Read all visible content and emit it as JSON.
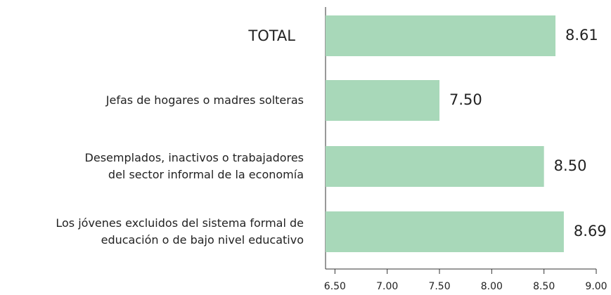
{
  "chart_data": {
    "type": "bar",
    "orientation": "horizontal",
    "categories": [
      "TOTAL",
      "Jefas de hogares o madres solteras",
      "Desemplados, inactivos o trabajadores\ndel sector informal de la economía",
      "Los jóvenes excluidos del sistema formal de\neducación o de bajo nivel educativo"
    ],
    "values": [
      8.61,
      7.5,
      8.5,
      8.69
    ],
    "value_labels": [
      "8.61",
      "7.50",
      "8.50",
      "8.69"
    ],
    "color": "#a8d8b9",
    "xlim": [
      6.41,
      9.0
    ],
    "xticks": [
      {
        "value": 6.5,
        "label": "6.50"
      },
      {
        "value": 7.0,
        "label": "7.00"
      },
      {
        "value": 7.5,
        "label": "7.50"
      },
      {
        "value": 8.0,
        "label": "8.00"
      },
      {
        "value": 8.5,
        "label": "8.50"
      },
      {
        "value": 9.0,
        "label": "9.00"
      }
    ],
    "grid": false
  }
}
